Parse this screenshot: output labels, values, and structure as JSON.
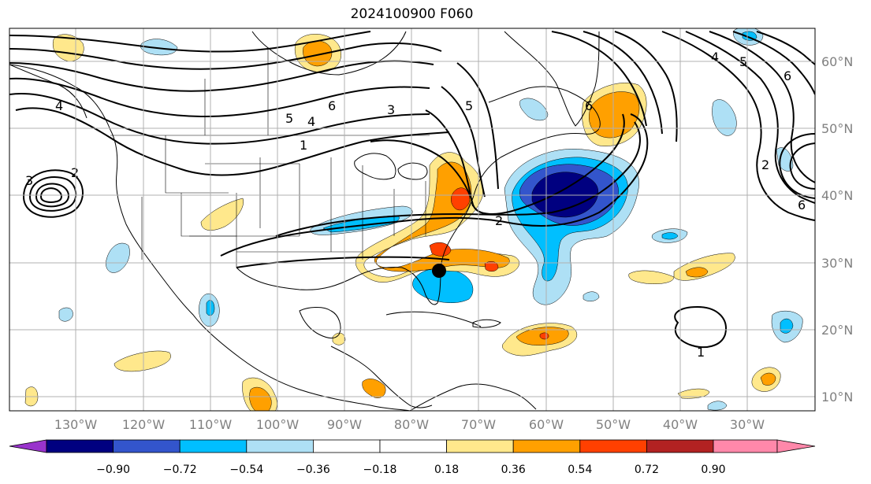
{
  "figure": {
    "title": "2024100900 F060"
  },
  "map": {
    "lon_labels": [
      "130°W",
      "120°W",
      "110°W",
      "100°W",
      "90°W",
      "80°W",
      "70°W",
      "60°W",
      "50°W",
      "40°W",
      "30°W"
    ],
    "lat_labels": [
      "60°N",
      "50°N",
      "40°N",
      "30°N",
      "20°N",
      "10°N"
    ],
    "contour_labels": [
      "6",
      "5",
      "4",
      "3",
      "1",
      "2",
      "6",
      "5",
      "4",
      "3",
      "2",
      "6",
      "1",
      "2",
      "4",
      "5",
      "6"
    ],
    "storm_marker": "black-dot",
    "colors": {
      "coast": "#000000",
      "grid": "#b0b0b0",
      "contour": "#000000"
    }
  },
  "colorbar": {
    "tick_labels": [
      "−0.90",
      "−0.72",
      "−0.54",
      "−0.36",
      "−0.18",
      "0.18",
      "0.36",
      "0.54",
      "0.72",
      "0.90"
    ],
    "colors": [
      "#9933cc",
      "#000080",
      "#3355cc",
      "#00bfff",
      "#aee0f5",
      "#ffffff",
      "#ffe88c",
      "#ffa000",
      "#ff4000",
      "#b22222",
      "#ff88aa"
    ]
  }
}
